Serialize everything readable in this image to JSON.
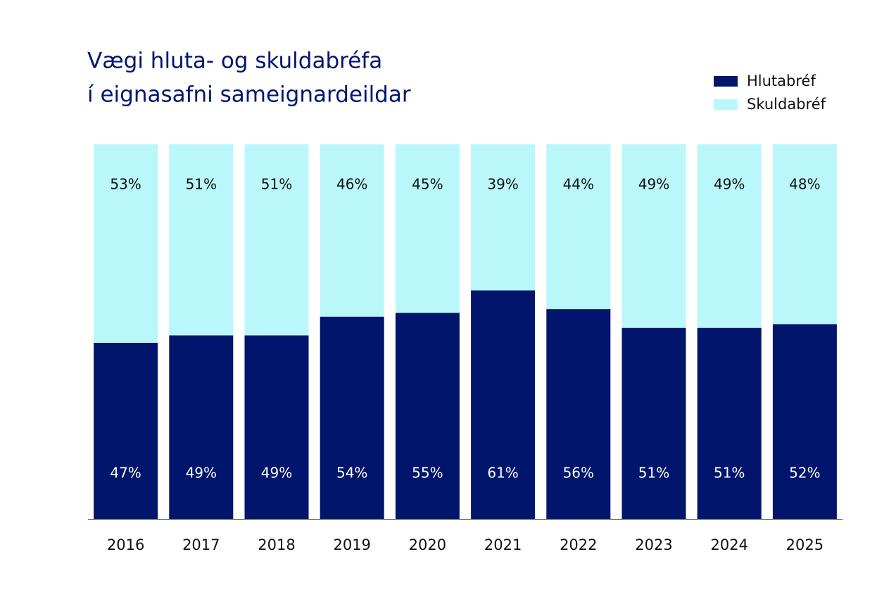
{
  "chart_data": {
    "type": "stacked_bar",
    "title": [
      "Vægi hluta- og skuldabréfa",
      "í eignasafni sameignardeildar"
    ],
    "categories": [
      "2016",
      "2017",
      "2018",
      "2019",
      "2020",
      "2021",
      "2022",
      "2023",
      "2024",
      "2025"
    ],
    "series": [
      {
        "name": "Hlutabréf",
        "color": "#00156b",
        "label_color": "#ffffff",
        "values": [
          47,
          49,
          49,
          54,
          55,
          61,
          56,
          51,
          51,
          52
        ],
        "value_labels": [
          "47%",
          "49%",
          "49%",
          "54%",
          "55%",
          "61%",
          "56%",
          "51%",
          "51%",
          "52%"
        ]
      },
      {
        "name": "Skuldabréf",
        "color": "#b9f7fb",
        "label_color": "#111111",
        "values": [
          53,
          51,
          51,
          46,
          45,
          39,
          44,
          49,
          49,
          48
        ],
        "value_labels": [
          "53%",
          "51%",
          "51%",
          "46%",
          "45%",
          "39%",
          "44%",
          "49%",
          "49%",
          "48%"
        ]
      }
    ],
    "ylim": [
      0,
      100
    ],
    "legend": "top-right"
  }
}
